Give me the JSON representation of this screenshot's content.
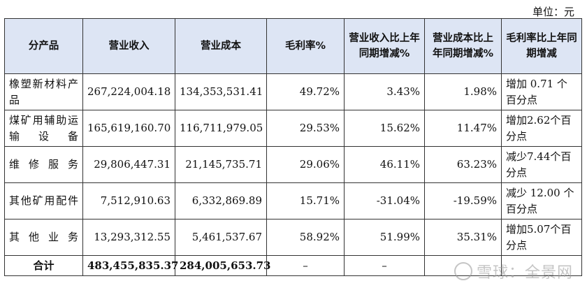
{
  "unit_label": "单位：元",
  "headers": [
    "分产品",
    "营业收入",
    "营业成本",
    "毛利率%",
    "营业收入比上年同期增减%",
    "营业成本比上年同期增减%",
    "毛利率比上年同期增减"
  ],
  "rows": [
    {
      "name": "橡塑新材料产品",
      "revenue": "267,224,004.18",
      "cost": "134,353,531.41",
      "margin": "49.72%",
      "rev_change": "3.43%",
      "cost_change": "1.98%",
      "margin_change": "增加 0.71 个百分点"
    },
    {
      "name": "煤矿用辅助运输设备",
      "revenue": "165,619,160.70",
      "cost": "116,711,979.05",
      "margin": "29.53%",
      "rev_change": "15.62%",
      "cost_change": "11.47%",
      "margin_change": "增加2.62个百分点"
    },
    {
      "name": "维修服务",
      "revenue": "29,806,447.31",
      "cost": "21,145,735.71",
      "margin": "29.06%",
      "rev_change": "46.11%",
      "cost_change": "63.23%",
      "margin_change": "减少7.44个百分点"
    },
    {
      "name": "其他矿用配件",
      "revenue": "7,512,910.63",
      "cost": "6,332,869.89",
      "margin": "15.71%",
      "rev_change": "-31.04%",
      "cost_change": "-19.59%",
      "margin_change": "减少 12.00 个百分点"
    },
    {
      "name": "其他业务",
      "revenue": "13,293,312.55",
      "cost": "5,461,537.67",
      "margin": "58.92%",
      "rev_change": "51.99%",
      "cost_change": "35.31%",
      "margin_change": "增加5.07个百分点"
    }
  ],
  "total": {
    "label": "合计",
    "revenue": "483,455,835.37",
    "cost": "284,005,653.73",
    "dash1": "–",
    "dash2": "–"
  },
  "watermark": "雪球：全景网",
  "watermark_icon": "snowball-logo-icon"
}
